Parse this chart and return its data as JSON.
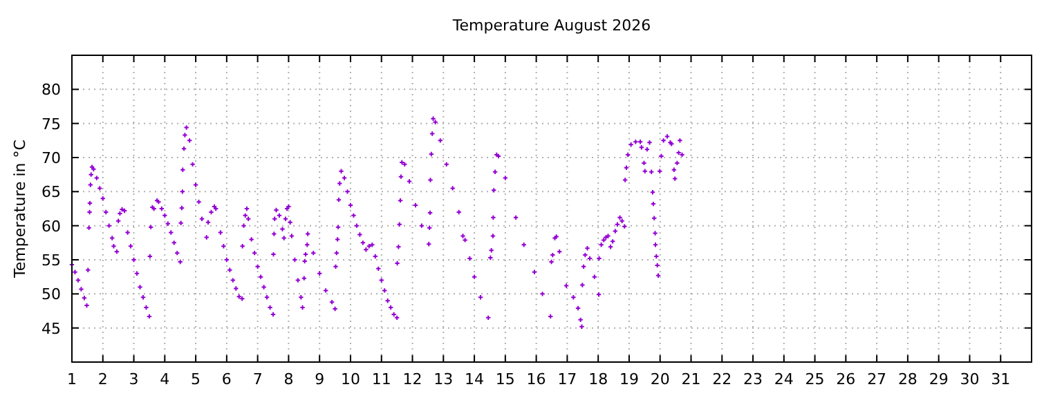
{
  "chart_data": {
    "type": "scatter",
    "title": "Temperature August 2026",
    "ylabel": "Temperature in °C",
    "xlim": [
      1,
      32
    ],
    "xticks": [
      1,
      2,
      3,
      4,
      5,
      6,
      7,
      8,
      9,
      10,
      11,
      12,
      13,
      14,
      15,
      16,
      17,
      18,
      19,
      20,
      21,
      22,
      23,
      24,
      25,
      26,
      27,
      28,
      29,
      30,
      31
    ],
    "ylim": [
      40,
      85
    ],
    "yticks": [
      45,
      50,
      55,
      60,
      65,
      70,
      75,
      80
    ],
    "grid": true,
    "marker": "cross",
    "series": [
      {
        "color": "#9400d3",
        "x": [
          1.0,
          1.1,
          1.2,
          1.3,
          1.4,
          1.48,
          1.52,
          1.55,
          1.57,
          1.58,
          1.6,
          1.62,
          1.65,
          1.7,
          1.8,
          1.9,
          2.0,
          2.1,
          2.2,
          2.3,
          2.35,
          2.45,
          2.5,
          2.55,
          2.62,
          2.7,
          2.8,
          2.9,
          3.0,
          3.1,
          3.2,
          3.3,
          3.4,
          3.5,
          3.52,
          3.55,
          3.6,
          3.65,
          3.75,
          3.8,
          3.9,
          4.0,
          4.1,
          4.2,
          4.3,
          4.4,
          4.5,
          4.52,
          4.55,
          4.57,
          4.58,
          4.62,
          4.65,
          4.7,
          4.8,
          4.9,
          5.0,
          5.1,
          5.2,
          5.35,
          5.4,
          5.5,
          5.6,
          5.65,
          5.8,
          5.9,
          6.0,
          6.1,
          6.2,
          6.3,
          6.4,
          6.5,
          6.51,
          6.55,
          6.6,
          6.65,
          6.7,
          6.8,
          6.9,
          7.0,
          7.1,
          7.2,
          7.3,
          7.4,
          7.5,
          7.51,
          7.53,
          7.55,
          7.6,
          7.7,
          7.8,
          7.85,
          7.9,
          7.95,
          8.0,
          8.05,
          8.1,
          8.2,
          8.3,
          8.4,
          8.45,
          8.5,
          8.52,
          8.55,
          8.6,
          8.62,
          8.8,
          9.0,
          9.2,
          9.4,
          9.5,
          9.52,
          9.55,
          9.58,
          9.6,
          9.62,
          9.65,
          9.7,
          9.8,
          9.9,
          10.0,
          10.1,
          10.2,
          10.3,
          10.4,
          10.5,
          10.6,
          10.7,
          10.8,
          10.9,
          11.0,
          11.1,
          11.2,
          11.3,
          11.4,
          11.5,
          11.51,
          11.55,
          11.58,
          11.61,
          11.63,
          11.66,
          11.75,
          11.9,
          12.1,
          12.3,
          12.53,
          12.55,
          12.57,
          12.58,
          12.61,
          12.64,
          12.67,
          12.74,
          12.9,
          13.1,
          13.3,
          13.5,
          13.63,
          13.7,
          13.85,
          14.0,
          14.2,
          14.45,
          14.52,
          14.55,
          14.6,
          14.61,
          14.63,
          14.67,
          14.72,
          14.78,
          15.0,
          15.34,
          15.6,
          15.94,
          16.2,
          16.46,
          16.49,
          16.53,
          16.6,
          16.65,
          16.75,
          16.97,
          17.2,
          17.35,
          17.43,
          17.47,
          17.49,
          17.53,
          17.58,
          17.65,
          17.73,
          17.88,
          18.02,
          18.03,
          18.1,
          18.18,
          18.25,
          18.32,
          18.4,
          18.47,
          18.55,
          18.62,
          18.7,
          18.77,
          18.85,
          18.87,
          18.91,
          18.96,
          19.06,
          19.21,
          19.36,
          19.4,
          19.48,
          19.51,
          19.58,
          19.66,
          19.72,
          19.76,
          19.78,
          19.81,
          19.84,
          19.85,
          19.88,
          19.91,
          19.94,
          19.99,
          20.04,
          20.11,
          20.23,
          20.33,
          20.37,
          20.45,
          20.48,
          20.55,
          20.6,
          20.64,
          20.71
        ],
        "values": [
          54.3,
          53.2,
          52,
          50.7,
          49.4,
          48.3,
          53.5,
          59.7,
          62,
          63.3,
          66,
          67.5,
          68.6,
          68.3,
          67,
          65.5,
          64,
          62,
          60,
          58.2,
          57,
          56.2,
          60.7,
          61.8,
          62.4,
          62.2,
          59,
          57,
          55,
          53,
          51,
          49.5,
          48,
          46.7,
          55.5,
          59.8,
          62.7,
          62.5,
          63.7,
          63.5,
          62.5,
          61.5,
          60.3,
          59,
          57.5,
          56,
          54.7,
          60.4,
          62.6,
          65,
          68.2,
          71.3,
          73.3,
          74.4,
          72.5,
          69,
          66,
          63.5,
          61,
          58.3,
          60.5,
          62,
          62.8,
          62.5,
          59,
          57,
          55,
          53.5,
          52,
          50.8,
          49.6,
          49.3,
          57,
          60,
          61.5,
          62.5,
          61,
          58,
          56,
          54,
          52.5,
          51,
          49.5,
          48,
          47,
          55.8,
          58.8,
          61,
          62.3,
          61.5,
          59.5,
          58.2,
          61,
          62.5,
          62.8,
          60.5,
          58.5,
          55,
          52,
          49.5,
          48,
          52.3,
          54.8,
          55.8,
          57.2,
          58.8,
          56,
          53,
          50.5,
          48.8,
          47.8,
          54,
          56,
          58,
          59.8,
          63.8,
          66.2,
          68,
          67,
          65,
          63,
          61.5,
          60,
          58.7,
          57.5,
          56.5,
          57,
          57.2,
          55.5,
          53.7,
          52,
          50.5,
          49,
          48,
          47,
          46.5,
          54.5,
          56.9,
          60.2,
          63.7,
          67.2,
          69.3,
          69,
          66.5,
          63,
          60,
          57.3,
          59.7,
          61.9,
          66.7,
          70.5,
          73.5,
          75.7,
          75.2,
          72.5,
          69,
          65.5,
          62,
          58.5,
          57.9,
          55.2,
          52.5,
          49.5,
          46.5,
          55.3,
          56.4,
          58.5,
          61.2,
          65.2,
          67.9,
          70.4,
          70.2,
          67,
          61.2,
          57.2,
          53.2,
          50,
          46.7,
          54.7,
          55.7,
          58.2,
          58.4,
          56.2,
          51.2,
          49.5,
          47.9,
          46.2,
          45.2,
          51.3,
          54,
          55.7,
          56.7,
          55.2,
          52.5,
          49.9,
          55.2,
          57.2,
          57.9,
          58.3,
          58.5,
          56.9,
          57.7,
          59.2,
          60.2,
          61.2,
          60.7,
          59.9,
          66.7,
          68.5,
          70.4,
          71.9,
          72.3,
          72.3,
          71.5,
          69.2,
          68,
          71.2,
          72.2,
          67.9,
          64.9,
          63.2,
          61.1,
          58.9,
          57.2,
          55.5,
          54.2,
          52.7,
          68,
          70.2,
          72.5,
          73.1,
          72.2,
          72,
          68.2,
          66.9,
          69.2,
          70.7,
          72.5,
          70.4
        ]
      }
    ]
  }
}
